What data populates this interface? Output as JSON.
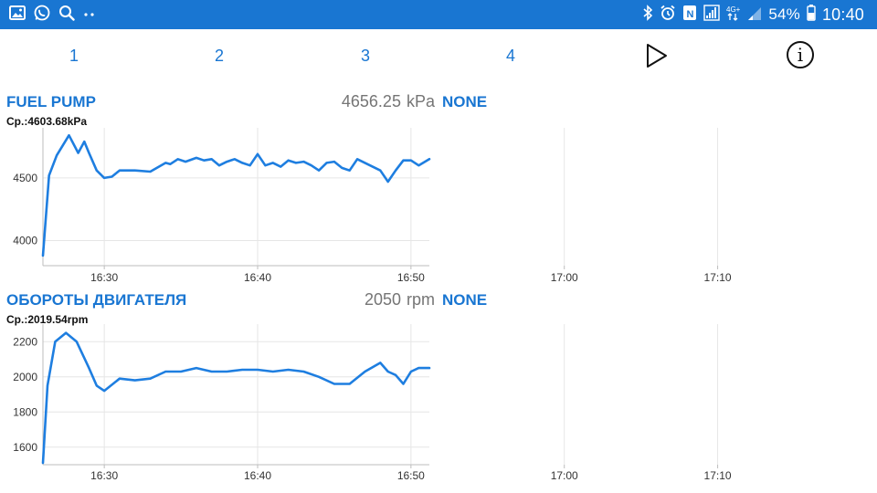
{
  "status_bar": {
    "left_icons": [
      "gallery-icon",
      "whatsapp-icon",
      "search-icon",
      "more-dots-icon"
    ],
    "right_icons": [
      "bluetooth-icon",
      "alarm-icon",
      "nfc-icon",
      "signal-icon",
      "network-4g-icon",
      "signal-weak-icon",
      "battery-icon"
    ],
    "battery": "54%",
    "time": "10:40"
  },
  "toolbar": {
    "tabs": [
      "1",
      "2",
      "3",
      "4"
    ],
    "play_icon": "play-icon",
    "info_icon": "info-icon",
    "info_glyph": "i"
  },
  "charts": [
    {
      "title": "FUEL PUMP",
      "value": "4656.25",
      "unit": "kPa",
      "mode": "NONE",
      "average": "Ср.:4603.68kPa"
    },
    {
      "title": "ОБОРОТЫ ДВИГАТЕЛЯ",
      "value": "2050",
      "unit": "rpm",
      "mode": "NONE",
      "average": "Ср.:2019.54rpm"
    }
  ],
  "colors": {
    "accent": "#1976d2",
    "line": "#1e7ee0",
    "status_bar": "#1976d2"
  },
  "chart_data": [
    {
      "type": "line",
      "title": "FUEL PUMP",
      "x_ticks": [
        "16:30",
        "16:40",
        "16:50",
        "17:00",
        "17:10"
      ],
      "y_ticks": [
        4000,
        4500
      ],
      "ylim": [
        3800,
        4900
      ],
      "xlim_minutes": [
        -4.0,
        21.2
      ],
      "grid": true,
      "series": [
        {
          "x": [
            -4.0,
            -3.6,
            -3.1,
            -2.3,
            -1.7,
            -1.3,
            -1.0,
            -0.5,
            0.0,
            0.5,
            1.0,
            2.0,
            3.0,
            4.0,
            4.3,
            4.8,
            5.3,
            6.0,
            6.5,
            7.0,
            7.5,
            8.0,
            8.5,
            9.0,
            9.5,
            10.0,
            10.5,
            11.0,
            11.5,
            12.0,
            12.5,
            13.0,
            13.5,
            14.0,
            14.5,
            15.0,
            15.5,
            16.0,
            16.5,
            17.0,
            17.5,
            18.0,
            18.5,
            19.0,
            19.5,
            20.0,
            20.5,
            21.2
          ],
          "y": [
            3880,
            4520,
            4680,
            4840,
            4700,
            4790,
            4700,
            4560,
            4500,
            4510,
            4560,
            4560,
            4550,
            4620,
            4610,
            4650,
            4630,
            4660,
            4640,
            4650,
            4600,
            4630,
            4650,
            4620,
            4600,
            4690,
            4600,
            4620,
            4590,
            4640,
            4620,
            4630,
            4600,
            4560,
            4620,
            4630,
            4580,
            4560,
            4650,
            4620,
            4590,
            4560,
            4470,
            4560,
            4640,
            4640,
            4600,
            4650
          ]
        }
      ]
    },
    {
      "type": "line",
      "title": "ОБОРОТЫ ДВИГАТЕЛЯ",
      "x_ticks": [
        "16:30",
        "16:40",
        "16:50",
        "17:00",
        "17:10"
      ],
      "y_ticks": [
        1600,
        1800,
        2000,
        2200
      ],
      "ylim": [
        1500,
        2300
      ],
      "xlim_minutes": [
        -4.0,
        21.2
      ],
      "grid": true,
      "series": [
        {
          "x": [
            -4.0,
            -3.7,
            -3.2,
            -2.5,
            -1.8,
            -1.0,
            -0.5,
            0.0,
            1.0,
            2.0,
            3.0,
            4.0,
            5.0,
            6.0,
            7.0,
            8.0,
            9.0,
            10.0,
            11.0,
            12.0,
            13.0,
            14.0,
            15.0,
            16.0,
            17.0,
            18.0,
            18.5,
            19.0,
            19.5,
            20.0,
            20.5,
            21.2
          ],
          "y": [
            1510,
            1950,
            2200,
            2250,
            2200,
            2050,
            1950,
            1920,
            1990,
            1980,
            1990,
            2030,
            2030,
            2050,
            2030,
            2030,
            2040,
            2040,
            2030,
            2040,
            2030,
            2000,
            1960,
            1960,
            2030,
            2080,
            2030,
            2010,
            1960,
            2030,
            2050,
            2050
          ]
        }
      ]
    }
  ]
}
